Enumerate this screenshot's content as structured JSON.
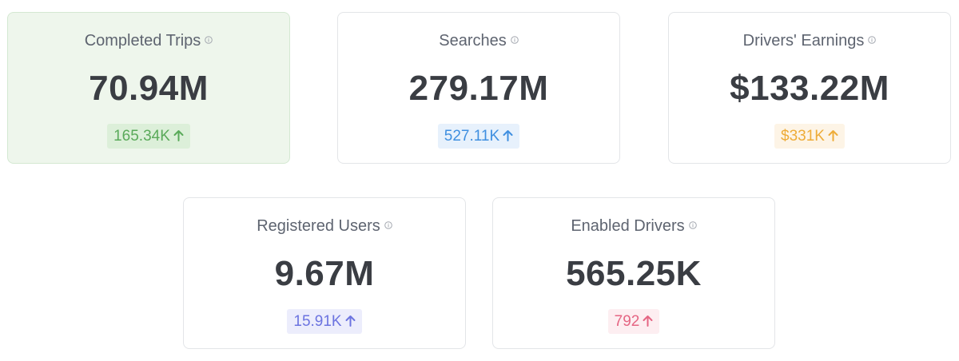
{
  "cards": [
    {
      "title": "Completed Trips",
      "value": "70.94M",
      "delta": "165.34K",
      "delta_direction": "up",
      "delta_color": "#5aaa5a",
      "delta_bg": "#dcefd9",
      "highlighted": true
    },
    {
      "title": "Searches",
      "value": "279.17M",
      "delta": "527.11K",
      "delta_direction": "up",
      "delta_color": "#3f8fe0",
      "delta_bg": "#e7f1fc",
      "highlighted": false
    },
    {
      "title": "Drivers' Earnings",
      "value": "$133.22M",
      "delta": "$331K",
      "delta_direction": "up",
      "delta_color": "#eeac38",
      "delta_bg": "#fdf4e6",
      "highlighted": false
    },
    {
      "title": "Registered Users",
      "value": "9.67M",
      "delta": "15.91K",
      "delta_direction": "up",
      "delta_color": "#6c74e0",
      "delta_bg": "#ecedfc",
      "highlighted": false
    },
    {
      "title": "Enabled Drivers",
      "value": "565.25K",
      "delta": "792",
      "delta_direction": "up",
      "delta_color": "#e56583",
      "delta_bg": "#fdeef1",
      "highlighted": false
    }
  ],
  "icons": {
    "info": "info-icon",
    "trend": "arrow-up-icon"
  }
}
